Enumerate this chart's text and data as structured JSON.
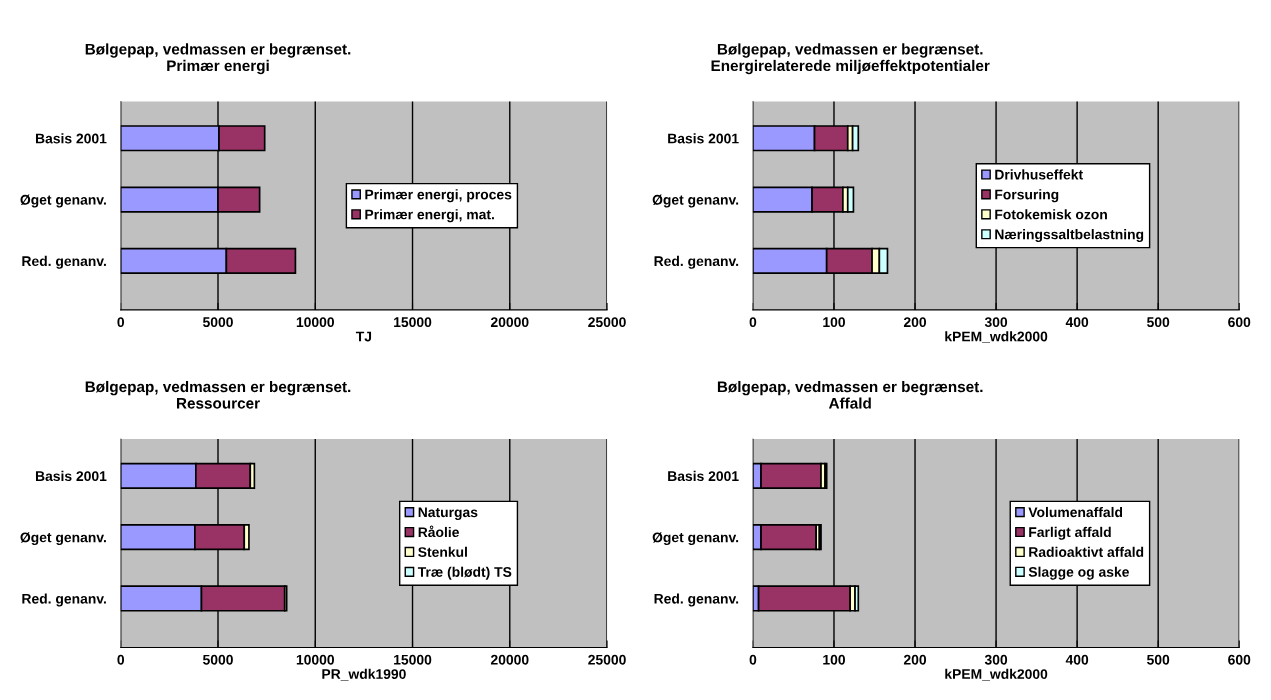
{
  "chart_data": [
    {
      "type": "bar",
      "orientation": "horizontal",
      "stacked": true,
      "title": "Bølgepap, vedmassen er begrænset.\nPrimær energi",
      "xlabel": "TJ",
      "categories": [
        "Basis 2001",
        "Øget genanv.",
        "Red. genanv."
      ],
      "xlim": [
        0,
        25000
      ],
      "xticks": [
        0,
        5000,
        10000,
        15000,
        20000,
        25000
      ],
      "grid": "x",
      "legend": "right",
      "series": [
        {
          "name": "Primær energi, proces",
          "color": "#9999ff",
          "values": [
            5050,
            5000,
            5430
          ]
        },
        {
          "name": "Primær energi, mat.",
          "color": "#993366",
          "values": [
            2350,
            2140,
            3550
          ]
        }
      ]
    },
    {
      "type": "bar",
      "orientation": "horizontal",
      "stacked": true,
      "title": "Bølgepap, vedmassen er begrænset.\nEnergirelaterede miljøeffektpotentialer",
      "xlabel": "kPEM_wdk2000",
      "categories": [
        "Basis 2001",
        "Øget genanv.",
        "Red. genanv."
      ],
      "xlim": [
        0,
        600
      ],
      "xticks": [
        0,
        100,
        200,
        300,
        400,
        500,
        600
      ],
      "grid": "x",
      "legend": "right",
      "series": [
        {
          "name": "Drivhuseffekt",
          "color": "#9999ff",
          "values": [
            76,
            73,
            91
          ]
        },
        {
          "name": "Forsuring",
          "color": "#993366",
          "values": [
            41,
            38,
            56
          ]
        },
        {
          "name": "Fotokemisk ozon",
          "color": "#ffffcc",
          "values": [
            6,
            6,
            9
          ]
        },
        {
          "name": "Næringssaltbelastning",
          "color": "#ccffff",
          "values": [
            7,
            7,
            10
          ]
        }
      ]
    },
    {
      "type": "bar",
      "orientation": "horizontal",
      "stacked": true,
      "title": "Bølgepap, vedmassen er begrænset.\nRessourcer",
      "xlabel": "PR_wdk1990",
      "categories": [
        "Basis 2001",
        "Øget genanv.",
        "Red. genanv."
      ],
      "xlim": [
        0,
        25000
      ],
      "xticks": [
        0,
        5000,
        10000,
        15000,
        20000,
        25000
      ],
      "grid": "x",
      "legend": "right",
      "series": [
        {
          "name": "Naturgas",
          "color": "#9999ff",
          "values": [
            3860,
            3810,
            4150
          ]
        },
        {
          "name": "Råolie",
          "color": "#993366",
          "values": [
            2800,
            2540,
            4280
          ]
        },
        {
          "name": "Stenkul",
          "color": "#ffffcc",
          "values": [
            210,
            240,
            100
          ]
        },
        {
          "name": "Træ (blødt) TS",
          "color": "#ccffff",
          "values": [
            null,
            null,
            null
          ]
        }
      ]
    },
    {
      "type": "bar",
      "orientation": "horizontal",
      "stacked": true,
      "title": "Bølgepap, vedmassen er begrænset.\nAffald",
      "xlabel": "kPEM_wdk2000",
      "categories": [
        "Basis 2001",
        "Øget genanv.",
        "Red. genanv."
      ],
      "xlim": [
        0,
        600
      ],
      "xticks": [
        0,
        100,
        200,
        300,
        400,
        500,
        600
      ],
      "grid": "x",
      "legend": "right",
      "series": [
        {
          "name": "Volumenaffald",
          "color": "#9999ff",
          "values": [
            10,
            10,
            7
          ]
        },
        {
          "name": "Farligt affald",
          "color": "#993366",
          "values": [
            74,
            68,
            113
          ]
        },
        {
          "name": "Radioaktivt affald",
          "color": "#ffffcc",
          "values": [
            5,
            4,
            6
          ]
        },
        {
          "name": "Slagge og aske",
          "color": "#ccffff",
          "values": [
            2,
            2,
            4
          ]
        }
      ]
    }
  ]
}
